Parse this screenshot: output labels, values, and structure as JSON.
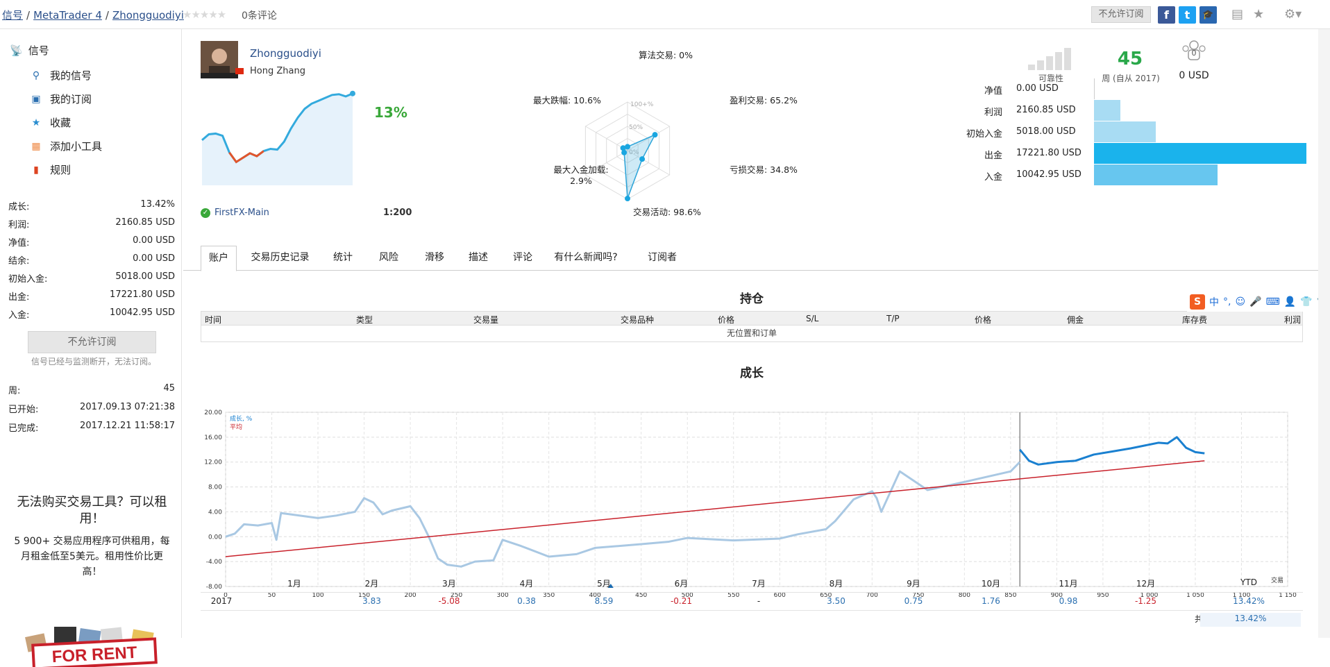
{
  "breadcrumb": {
    "part1": "信号",
    "sep1": "/",
    "part2": "MetaTrader 4",
    "sep2": "/",
    "part3": "Zhongguodiyi"
  },
  "rating": {
    "stars": "★★★★★",
    "reviews": "0条评论"
  },
  "top": {
    "nosub_label": "不允许订阅",
    "fb": "f",
    "tw": "t"
  },
  "sidebar": {
    "head": "信号",
    "items": [
      {
        "label": "我的信号"
      },
      {
        "label": "我的订阅"
      },
      {
        "label": "收藏"
      },
      {
        "label": "添加小工具"
      },
      {
        "label": "规则"
      }
    ],
    "stats": [
      {
        "k": "成长:",
        "v": "13.42%"
      },
      {
        "k": "利润:",
        "v": "2160.85 USD"
      },
      {
        "k": "净值:",
        "v": "0.00 USD"
      },
      {
        "k": "结余:",
        "v": "0.00 USD"
      },
      {
        "k": "初始入金:",
        "v": "5018.00 USD"
      },
      {
        "k": "出金:",
        "v": "17221.80 USD"
      },
      {
        "k": "入金:",
        "v": "10042.95 USD"
      }
    ],
    "nosub_label": "不允许订阅",
    "nosub_note": "信号已经与监测断开，无法订阅。",
    "info": [
      {
        "k": "周:",
        "v": "45"
      },
      {
        "k": "已开始:",
        "v": "2017.09.13 07:21:38"
      },
      {
        "k": "已完成:",
        "v": "2017.12.21 11:58:17"
      }
    ],
    "rent_title": "无法购买交易工具？可以租用！",
    "rent_text": "5 900+ 交易应用程序可供租用，每月租金低至5美元。租用性价比更高！",
    "rent_stamp": "FOR RENT"
  },
  "profile": {
    "name": "Zhongguodiyi",
    "realname": "Hong Zhang",
    "growth_pct": "13%",
    "broker": "FirstFX-Main",
    "leverage": "1:200",
    "sparkline": [
      0.62,
      0.7,
      0.71,
      0.68,
      0.45,
      0.32,
      0.38,
      0.44,
      0.4,
      0.47,
      0.5,
      0.49,
      0.6,
      0.78,
      0.93,
      1.05,
      1.12,
      1.16,
      1.2,
      1.24,
      1.25,
      1.22,
      1.26
    ]
  },
  "radar": {
    "labels": [
      {
        "text": "算法交易: 0%",
        "value": 0
      },
      {
        "text": "盈利交易: 65.2%",
        "value": 65.2
      },
      {
        "text": "亏损交易: 34.8%",
        "value": 34.8
      },
      {
        "text": "交易活动: 98.6%",
        "value": 98.6
      },
      {
        "text": "最大入金加载:",
        "text2": "2.9%",
        "value": 2.9
      },
      {
        "text": "最大跌幅: 10.6%",
        "value": 10.6
      }
    ],
    "scale": [
      "100+%",
      "50%",
      "0%"
    ]
  },
  "summary": {
    "reliability_label": "可靠性",
    "weeks": "45",
    "weeks_label": "周 (自从 2017)",
    "subscribers": "0",
    "subscribers_usd": "0 USD",
    "bars": [
      {
        "label": "净值",
        "value": "0.00 USD",
        "amount": 0
      },
      {
        "label": "利润",
        "value": "2160.85 USD",
        "amount": 2160.85
      },
      {
        "label": "初始入金",
        "value": "5018.00 USD",
        "amount": 5018
      },
      {
        "label": "出金",
        "value": "17221.80 USD",
        "amount": 17221.8
      },
      {
        "label": "入金",
        "value": "10042.95 USD",
        "amount": 10042.95
      }
    ],
    "colors": {
      "light": "#a8dcf3",
      "mid": "#67c6ef",
      "strong": "#1ab3ec"
    }
  },
  "tabs": [
    "账户",
    "交易历史记录",
    "统计",
    "风险",
    "滑移",
    "描述",
    "评论",
    "有什么新闻吗?",
    "订阅者"
  ],
  "positions": {
    "title": "持仓",
    "columns": [
      "时间",
      "类型",
      "交易量",
      "交易品种",
      "价格",
      "S/L",
      "T/P",
      "价格",
      "佣金",
      "库存费",
      "利润"
    ],
    "empty": "无位置和订单"
  },
  "growth_title": "成长",
  "chart_data": {
    "type": "line",
    "title": "成长",
    "xlabel": "交易",
    "ylabel": "",
    "xlim": [
      0,
      1150
    ],
    "ylim": [
      -8,
      20
    ],
    "x_ticks": [
      0,
      50,
      100,
      150,
      200,
      250,
      300,
      350,
      400,
      450,
      500,
      550,
      600,
      650,
      700,
      750,
      800,
      850,
      900,
      950,
      1000,
      1050,
      1100,
      1150
    ],
    "x_tick_labels": [
      "0",
      "50",
      "100",
      "150",
      "200",
      "250",
      "300",
      "350",
      "400",
      "450",
      "500",
      "550",
      "600",
      "650",
      "700",
      "750",
      "800",
      "850",
      "900",
      "950",
      "1 000",
      "1 050",
      "1 100",
      "1 150"
    ],
    "y_ticks": [
      -8,
      -4,
      0,
      4,
      8,
      12,
      16,
      20
    ],
    "y_tick_labels": [
      "-8.00",
      "-4.00",
      "0.00",
      "4.00",
      "8.00",
      "12.00",
      "16.00",
      "20.00"
    ],
    "grid": true,
    "legend": "top-left",
    "series": [
      {
        "name": "成长, %",
        "color": "#a9c8e3",
        "x": [
          0,
          10,
          20,
          35,
          50,
          55,
          60,
          70,
          100,
          120,
          140,
          150,
          160,
          170,
          180,
          200,
          210,
          220,
          230,
          240,
          255,
          270,
          290,
          300,
          320,
          350,
          380,
          400,
          450,
          480,
          500,
          550,
          600,
          620,
          650,
          660,
          680,
          700,
          705,
          710,
          730,
          760,
          800,
          850,
          860
        ],
        "y": [
          0,
          0.5,
          2,
          1.8,
          2.2,
          -0.5,
          3.8,
          3.6,
          3,
          3.4,
          4,
          6.2,
          5.5,
          3.6,
          4.2,
          4.9,
          3,
          0,
          -3.5,
          -4.5,
          -4.8,
          -4,
          -3.8,
          -0.5,
          -1.5,
          -3.2,
          -2.8,
          -1.8,
          -1.2,
          -0.8,
          -0.2,
          -0.6,
          -0.3,
          0.4,
          1.2,
          2.5,
          6,
          7.3,
          6.2,
          4,
          10.5,
          7.5,
          8.8,
          10.5,
          12
        ]
      },
      {
        "name": "成长, %",
        "color": "#1a80d0",
        "x": [
          860,
          870,
          880,
          900,
          920,
          940,
          960,
          980,
          1000,
          1010,
          1020,
          1030,
          1040,
          1050,
          1060
        ],
        "y": [
          14,
          12.2,
          11.6,
          12,
          12.2,
          13.2,
          13.7,
          14.2,
          14.8,
          15.1,
          15,
          16,
          14.3,
          13.6,
          13.4
        ]
      },
      {
        "name": "平均",
        "color": "#c8202a",
        "x": [
          0,
          1060
        ],
        "y": [
          -3.2,
          12.2
        ]
      }
    ],
    "vline_x": 860
  },
  "year_table": {
    "months": [
      "1月",
      "2月",
      "3月",
      "4月",
      "5月",
      "6月",
      "7月",
      "8月",
      "9月",
      "10月",
      "11月",
      "12月"
    ],
    "ytd_label": "YTD",
    "year": "2017",
    "values": [
      "",
      "3.83",
      "-5.08",
      "0.38",
      "8.59",
      "-0.21",
      "-",
      "3.50",
      "0.75",
      "1.76",
      "0.98",
      "-1.25"
    ],
    "ytd": "13.42%",
    "total_label": "共计:",
    "total": "13.42%"
  }
}
